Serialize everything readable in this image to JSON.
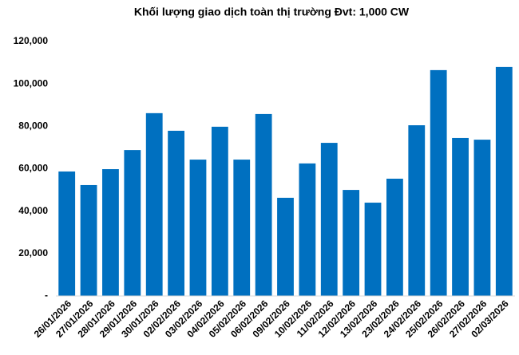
{
  "chart_data": {
    "type": "bar",
    "title": "Khối lượng giao dịch toàn thị trường Đvt: 1,000 CW",
    "categories": [
      "26/01/2026",
      "27/01/2026",
      "28/01/2026",
      "29/01/2026",
      "30/01/2026",
      "02/02/2026",
      "03/02/2026",
      "04/02/2026",
      "05/02/2026",
      "06/02/2026",
      "09/02/2026",
      "10/02/2026",
      "11/02/2026",
      "12/02/2026",
      "13/02/2026",
      "23/02/2026",
      "24/02/2026",
      "25/02/2026",
      "26/02/2026",
      "27/02/2026",
      "02/03/2026"
    ],
    "values": [
      58700,
      52300,
      59800,
      68800,
      86200,
      77900,
      64300,
      79800,
      64300,
      85800,
      46300,
      62500,
      72200,
      50000,
      44000,
      55300,
      80500,
      106500,
      74500,
      73700,
      108000
    ],
    "color": "#0070c0",
    "ylim": [
      0,
      120000
    ],
    "yticks": [
      {
        "value": 0,
        "label": "-"
      },
      {
        "value": 20000,
        "label": "20,000"
      },
      {
        "value": 40000,
        "label": "40,000"
      },
      {
        "value": 60000,
        "label": "60,000"
      },
      {
        "value": 80000,
        "label": "80,000"
      },
      {
        "value": 100000,
        "label": "100,000"
      },
      {
        "value": 120000,
        "label": "120,000"
      }
    ],
    "grid": false
  }
}
